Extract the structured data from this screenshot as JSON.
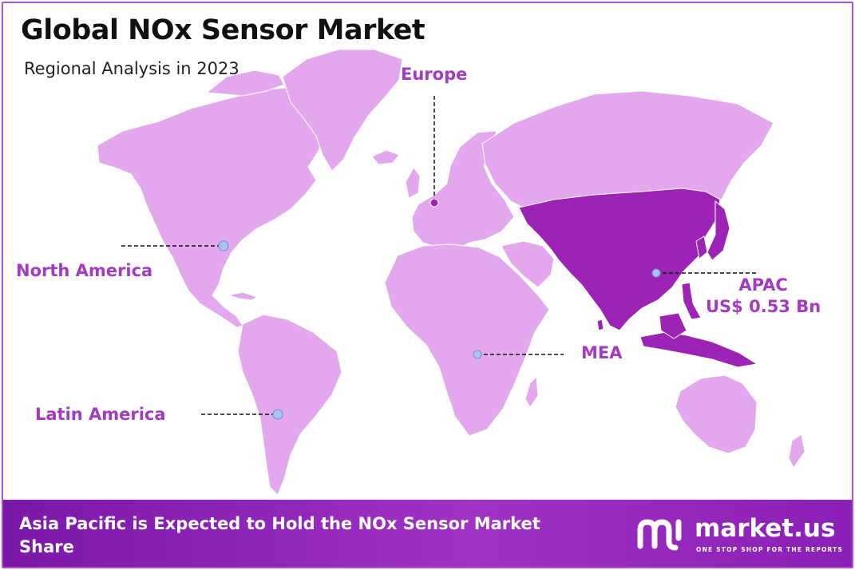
{
  "title": "Global NOx Sensor Market",
  "subtitle": "Regional Analysis in 2023",
  "colors": {
    "land": "#e2a7ec",
    "highlight": "#9b24b5",
    "label": "#a23bbd",
    "marker": "#a9c3ee",
    "footer": "#8b20b6",
    "border": "#b050c8"
  },
  "regions": {
    "north_america": {
      "label": "North America"
    },
    "europe": {
      "label": "Europe"
    },
    "apac": {
      "label": "APAC",
      "value": "US$ 0.53 Bn",
      "highlighted": true
    },
    "mea": {
      "label": "MEA"
    },
    "latin_america": {
      "label": "Latin America"
    }
  },
  "footer": {
    "text": "Asia Pacific is Expected to Hold the NOx Sensor Market Share"
  },
  "brand": {
    "name": "market.us",
    "tagline": "ONE STOP SHOP FOR THE REPORTS",
    "icon": "market-us-logo-icon"
  }
}
